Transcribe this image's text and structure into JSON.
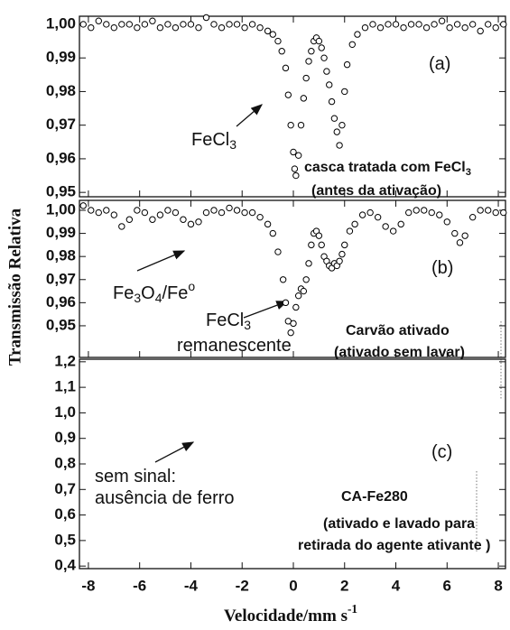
{
  "chart_data": [
    {
      "type": "scatter",
      "xlim": [
        -8.35,
        8.28
      ],
      "ylim": [
        0.9487,
        1.0024
      ],
      "yticks": [
        {
          "value": 1.0,
          "label": "1,00"
        },
        {
          "value": 0.99,
          "label": "0,99"
        },
        {
          "value": 0.98,
          "label": "0,98"
        },
        {
          "value": 0.97,
          "label": "0,97"
        },
        {
          "value": 0.96,
          "label": "0,96"
        },
        {
          "value": 0.95,
          "label": "0,95"
        }
      ],
      "series": [
        {
          "color": "#000000",
          "x": [
            -8.2,
            -7.9,
            -7.6,
            -7.3,
            -7.0,
            -6.7,
            -6.4,
            -6.1,
            -5.8,
            -5.5,
            -5.2,
            -4.9,
            -4.6,
            -4.3,
            -4.0,
            -3.7,
            -3.4,
            -3.1,
            -2.8,
            -2.5,
            -2.2,
            -1.9,
            -1.6,
            -1.3,
            -1.0,
            -0.8,
            -0.6,
            -0.45,
            -0.3,
            -0.2,
            -0.1,
            0,
            0.05,
            0.1,
            0.2,
            0.3,
            0.4,
            0.5,
            0.6,
            0.7,
            0.8,
            0.9,
            1.0,
            1.1,
            1.2,
            1.3,
            1.4,
            1.5,
            1.6,
            1.7,
            1.8,
            1.9,
            2.0,
            2.1,
            2.3,
            2.5,
            2.8,
            3.1,
            3.4,
            3.7,
            4.0,
            4.3,
            4.6,
            4.9,
            5.2,
            5.5,
            5.8,
            6.1,
            6.4,
            6.7,
            7.0,
            7.3,
            7.6,
            7.9,
            8.2
          ],
          "values": [
            1.0,
            0.999,
            1.001,
            1.0,
            0.999,
            1.0,
            1.0,
            0.999,
            1.0,
            1.001,
            0.999,
            1.0,
            0.999,
            1.0,
            1.0,
            0.999,
            1.002,
            1.0,
            0.999,
            1.0,
            1.0,
            0.999,
            1.0,
            0.999,
            0.998,
            0.997,
            0.995,
            0.992,
            0.987,
            0.979,
            0.97,
            0.962,
            0.957,
            0.955,
            0.961,
            0.97,
            0.978,
            0.984,
            0.989,
            0.992,
            0.995,
            0.996,
            0.995,
            0.993,
            0.99,
            0.986,
            0.982,
            0.977,
            0.972,
            0.968,
            0.964,
            0.97,
            0.98,
            0.988,
            0.994,
            0.997,
            0.999,
            1.0,
            0.999,
            1.0,
            1.0,
            0.999,
            1.0,
            1.0,
            0.999,
            1.0,
            1.001,
            0.999,
            1.0,
            0.999,
            1.0,
            0.998,
            1.0,
            0.999,
            1.0
          ]
        }
      ],
      "annotations": [
        {
          "runs": [
            {
              "t": "(a)"
            }
          ]
        },
        {
          "runs": [
            {
              "t": "FeCl"
            },
            {
              "t": "3",
              "sub": true
            }
          ]
        },
        {
          "runs": [
            {
              "t": "casca tratada com FeCl"
            },
            {
              "t": "3",
              "sub": true
            }
          ],
          "bold": true
        },
        {
          "runs": [
            {
              "t": "(antes da ativação)"
            }
          ],
          "bold": true
        }
      ]
    },
    {
      "type": "scatter",
      "xlim": [
        -8.35,
        8.28
      ],
      "ylim": [
        0.9363,
        1.0043
      ],
      "ylabel": "Transmissão Relativa",
      "yticks": [
        {
          "value": 1.0,
          "label": "1,00"
        },
        {
          "value": 0.99,
          "label": "0,99"
        },
        {
          "value": 0.98,
          "label": "0,98"
        },
        {
          "value": 0.97,
          "label": "0,97"
        },
        {
          "value": 0.96,
          "label": "0,96"
        },
        {
          "value": 0.95,
          "label": "0,95"
        }
      ],
      "series": [
        {
          "color": "#000000",
          "x": [
            -8.2,
            -7.9,
            -7.6,
            -7.3,
            -7.0,
            -6.7,
            -6.4,
            -6.1,
            -5.8,
            -5.5,
            -5.2,
            -4.9,
            -4.6,
            -4.3,
            -4.0,
            -3.7,
            -3.4,
            -3.1,
            -2.8,
            -2.5,
            -2.2,
            -1.9,
            -1.6,
            -1.3,
            -1.0,
            -0.8,
            -0.6,
            -0.4,
            -0.3,
            -0.2,
            -0.1,
            0,
            0.1,
            0.2,
            0.3,
            0.4,
            0.5,
            0.6,
            0.7,
            0.8,
            0.9,
            1.0,
            1.1,
            1.2,
            1.3,
            1.4,
            1.5,
            1.6,
            1.7,
            1.8,
            1.9,
            2.0,
            2.2,
            2.4,
            2.7,
            3.0,
            3.3,
            3.6,
            3.9,
            4.2,
            4.5,
            4.8,
            5.1,
            5.4,
            5.7,
            6.0,
            6.3,
            6.5,
            6.7,
            7.0,
            7.3,
            7.6,
            7.9,
            8.2
          ],
          "values": [
            1.002,
            1.0,
            0.999,
            1.0,
            0.998,
            0.993,
            0.996,
            1.0,
            0.999,
            0.996,
            0.998,
            1.0,
            0.999,
            0.996,
            0.994,
            0.995,
            0.999,
            1.0,
            0.999,
            1.001,
            1.0,
            0.999,
            0.999,
            0.997,
            0.994,
            0.99,
            0.982,
            0.97,
            0.96,
            0.952,
            0.947,
            0.951,
            0.958,
            0.963,
            0.966,
            0.965,
            0.97,
            0.977,
            0.985,
            0.99,
            0.991,
            0.989,
            0.985,
            0.98,
            0.978,
            0.976,
            0.975,
            0.977,
            0.976,
            0.978,
            0.981,
            0.985,
            0.991,
            0.994,
            0.998,
            0.999,
            0.997,
            0.993,
            0.991,
            0.994,
            0.999,
            1.0,
            1.0,
            0.999,
            0.998,
            0.995,
            0.99,
            0.986,
            0.989,
            0.997,
            1.0,
            1.0,
            0.999,
            0.999
          ]
        }
      ],
      "annotations": [
        {
          "runs": [
            {
              "t": "(b)"
            }
          ]
        },
        {
          "runs": [
            {
              "t": "Fe"
            },
            {
              "t": "3",
              "sub": true
            },
            {
              "t": "O"
            },
            {
              "t": "4",
              "sub": true
            },
            {
              "t": "/Fe"
            },
            {
              "t": "o",
              "sup": true
            }
          ]
        },
        {
          "runs": [
            {
              "t": "FeCl"
            },
            {
              "t": "3",
              "sub": true
            }
          ]
        },
        {
          "runs": [
            {
              "t": "remanescente"
            }
          ]
        },
        {
          "runs": [
            {
              "t": "Carvão ativado"
            }
          ],
          "bold": true
        },
        {
          "runs": [
            {
              "t": "(ativado sem lavar)"
            }
          ],
          "bold": true
        }
      ]
    },
    {
      "type": "scatter",
      "xlim": [
        -8.35,
        8.28
      ],
      "ylim": [
        0.39,
        1.21
      ],
      "xlabel": [
        {
          "t": "Velocidade/mm s"
        },
        {
          "t": "-1",
          "sup": true
        }
      ],
      "xticks": [
        -8,
        -6,
        -4,
        -2,
        0,
        2,
        4,
        6,
        8
      ],
      "yticks": [
        {
          "value": 1.2,
          "label": "1,2"
        },
        {
          "value": 1.1,
          "label": "1,1"
        },
        {
          "value": 1.0,
          "label": "1,0"
        },
        {
          "value": 0.9,
          "label": "0,9"
        },
        {
          "value": 0.8,
          "label": "0,8"
        },
        {
          "value": 0.7,
          "label": "0,7"
        },
        {
          "value": 0.6,
          "label": "0,6"
        },
        {
          "value": 0.5,
          "label": "0,5"
        },
        {
          "value": 0.4,
          "label": "0,4"
        }
      ],
      "series": [],
      "annotations": [
        {
          "runs": [
            {
              "t": "(c)"
            }
          ]
        },
        {
          "runs": [
            {
              "t": "sem sinal:"
            }
          ]
        },
        {
          "runs": [
            {
              "t": "ausência de ferro"
            }
          ]
        },
        {
          "runs": [
            {
              "t": "CA-Fe280"
            }
          ],
          "bold": true
        },
        {
          "runs": [
            {
              "t": "(ativado e lavado para"
            }
          ],
          "bold": true
        },
        {
          "runs": [
            {
              "t": "retirada do agente ativante )"
            }
          ],
          "bold": true
        }
      ]
    }
  ]
}
